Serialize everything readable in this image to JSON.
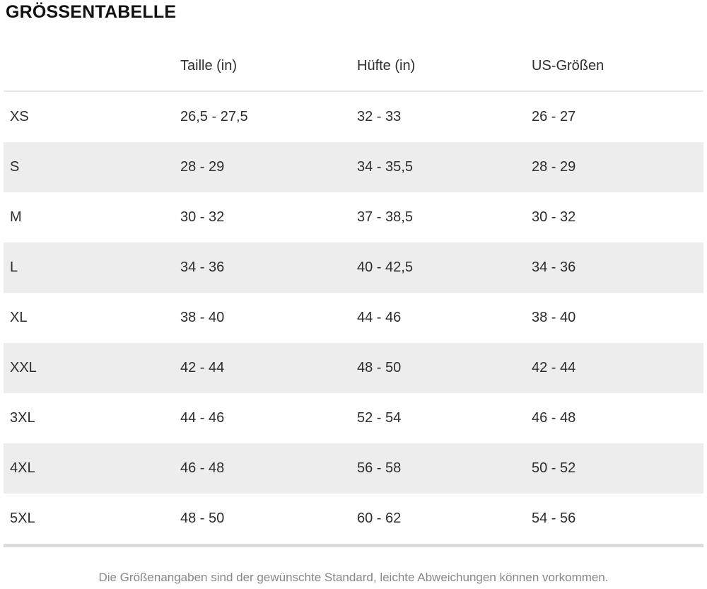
{
  "page": {
    "title": "GRÖSSENTABELLE",
    "footer_note": "Die Größenangaben sind der gewünschte Standard, leichte Abweichungen können vorkommen."
  },
  "size_table": {
    "columns": [
      "",
      "Taille (in)",
      "Hüfte (in)",
      "US-Größen"
    ],
    "rows": [
      {
        "size": "XS",
        "taille": "26,5 - 27,5",
        "huefte": "32 - 33",
        "us": "26 - 27"
      },
      {
        "size": "S",
        "taille": "28 - 29",
        "huefte": "34 - 35,5",
        "us": "28 - 29"
      },
      {
        "size": "M",
        "taille": "30 - 32",
        "huefte": "37 - 38,5",
        "us": "30 - 32"
      },
      {
        "size": "L",
        "taille": "34 - 36",
        "huefte": "40 - 42,5",
        "us": "34 - 36"
      },
      {
        "size": "XL",
        "taille": "38 - 40",
        "huefte": "44 - 46",
        "us": "38 - 40"
      },
      {
        "size": "XXL",
        "taille": "42 - 44",
        "huefte": "48 - 50",
        "us": "42 - 44"
      },
      {
        "size": "3XL",
        "taille": "44 - 46",
        "huefte": "52 - 54",
        "us": "46 - 48"
      },
      {
        "size": "4XL",
        "taille": "46 - 48",
        "huefte": "56 - 58",
        "us": "50 - 52"
      },
      {
        "size": "5XL",
        "taille": "48 - 50",
        "huefte": "60 - 62",
        "us": "54 - 56"
      }
    ]
  },
  "colors": {
    "row_stripe": "#ededed",
    "header_border": "#e7e7e7",
    "bottom_divider": "#dcdcdc",
    "note_text": "#878787",
    "body_text": "#2d2d2d"
  }
}
